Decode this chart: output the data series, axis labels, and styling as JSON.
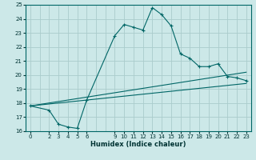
{
  "xlabel": "Humidex (Indice chaleur)",
  "bg_color": "#cce8e8",
  "grid_color": "#aacccc",
  "line_color": "#006666",
  "xlim": [
    -0.5,
    23.5
  ],
  "ylim": [
    16,
    25
  ],
  "xticks": [
    0,
    2,
    3,
    4,
    5,
    6,
    9,
    10,
    11,
    12,
    13,
    14,
    15,
    16,
    17,
    18,
    19,
    20,
    21,
    22,
    23
  ],
  "yticks": [
    16,
    17,
    18,
    19,
    20,
    21,
    22,
    23,
    24,
    25
  ],
  "line1_x": [
    0,
    2,
    3,
    4,
    5,
    6,
    9,
    10,
    11,
    12,
    13,
    14,
    15,
    16,
    17,
    18,
    19,
    20,
    21,
    22,
    23
  ],
  "line1_y": [
    17.8,
    17.5,
    16.5,
    16.3,
    16.2,
    18.2,
    22.8,
    23.6,
    23.4,
    23.2,
    24.8,
    24.3,
    23.5,
    21.5,
    21.2,
    20.6,
    20.6,
    20.8,
    19.9,
    19.8,
    19.6
  ],
  "line2_x": [
    0,
    23
  ],
  "line2_y": [
    17.8,
    19.4
  ],
  "line3_x": [
    0,
    23
  ],
  "line3_y": [
    17.8,
    20.2
  ]
}
